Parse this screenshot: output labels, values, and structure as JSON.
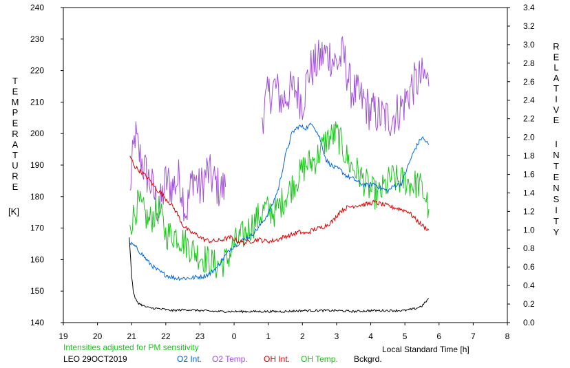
{
  "chart_data": {
    "type": "line",
    "left_axis": {
      "label_letters": [
        "T",
        "E",
        "M",
        "P",
        "E",
        "R",
        "A",
        "T",
        "U",
        "R",
        "E"
      ],
      "unit": "[K]",
      "range": [
        140,
        240
      ],
      "ticks": [
        "140",
        "150",
        "160",
        "170",
        "180",
        "190",
        "200",
        "210",
        "220",
        "230",
        "240"
      ]
    },
    "right_axis": {
      "label_letters_1": [
        "R",
        "E",
        "L",
        "A",
        "T",
        "I",
        "V",
        "E"
      ],
      "label_letters_2": [
        "I",
        "N",
        "T",
        "E",
        "N",
        "S",
        "I",
        "T",
        "Y"
      ],
      "range": [
        0.0,
        3.4
      ],
      "ticks": [
        "0.0",
        "0.2",
        "0.4",
        "0.6",
        "0.8",
        "1.0",
        "1.2",
        "1.4",
        "1.6",
        "1.8",
        "2.0",
        "2.2",
        "2.4",
        "2.6",
        "2.8",
        "3.0",
        "3.2",
        "3.4"
      ]
    },
    "x_axis": {
      "label": "Local Standard Time [h]",
      "range": [
        19,
        32
      ],
      "ticks": [
        "19",
        "20",
        "21",
        "22",
        "23",
        "0",
        "1",
        "2",
        "3",
        "4",
        "5",
        "6",
        "7",
        "8"
      ]
    },
    "notes": {
      "sensitivity": "Intensities adjusted for PM sensitivity",
      "station": "LEO 29OCT2019"
    },
    "legend": [
      {
        "label": "O2 Int.",
        "color": "#0064dc"
      },
      {
        "label": "O2 Temp.",
        "color": "#a050dc"
      },
      {
        "label": "OH Int.",
        "color": "#dc0000"
      },
      {
        "label": "OH Temp.",
        "color": "#14c814"
      },
      {
        "label": "Bckgrd.",
        "color": "#000000"
      }
    ],
    "series": [
      {
        "key": "o2temp",
        "axis": "left",
        "color": "#a050dc",
        "noise": 7,
        "x": [
          20.95,
          21.1,
          21.2,
          21.4,
          21.6,
          21.8,
          22.0,
          22.2,
          22.4,
          22.6,
          22.8,
          23.0,
          23.2,
          23.4,
          23.6,
          23.75
        ],
        "y": [
          182,
          200,
          194,
          188,
          183,
          175,
          185,
          183,
          186,
          175,
          187,
          182,
          188,
          185,
          182,
          183
        ]
      },
      {
        "key": "o2temp",
        "axis": "left",
        "color": "#a050dc",
        "noise": 7,
        "x": [
          24.8,
          25.0,
          25.2,
          25.4,
          25.6,
          25.8,
          26.0,
          26.2,
          26.4,
          26.6,
          26.8,
          27.0,
          27.2,
          27.4,
          27.6,
          27.8,
          28.0,
          28.2,
          28.4,
          28.6,
          28.8,
          29.0,
          29.2,
          29.4,
          29.6,
          29.7
        ],
        "y": [
          205,
          212,
          215,
          210,
          213,
          214,
          210,
          220,
          222,
          225,
          225,
          222,
          225,
          215,
          212,
          210,
          207,
          206,
          205,
          205,
          207,
          210,
          215,
          217,
          218,
          215
        ]
      },
      {
        "key": "oh_temp",
        "axis": "left",
        "color": "#14c814",
        "noise": 5,
        "x": [
          20.95,
          21.2,
          21.5,
          21.8,
          22.0,
          22.3,
          22.6,
          22.9,
          23.2,
          23.5,
          23.8,
          24.0,
          24.3,
          24.6,
          24.9,
          25.2,
          25.5,
          25.8,
          26.1,
          26.4,
          26.7,
          27.0,
          27.2,
          27.4,
          27.6,
          27.8,
          28.0,
          28.2,
          28.4,
          28.6,
          28.8,
          29.0,
          29.2,
          29.4,
          29.6,
          29.7
        ],
        "y": [
          171,
          178,
          172,
          176,
          168,
          168,
          165,
          162,
          160,
          158,
          160,
          165,
          168,
          172,
          176,
          175,
          180,
          185,
          190,
          192,
          198,
          200,
          195,
          190,
          188,
          185,
          182,
          180,
          183,
          186,
          185,
          185,
          184,
          184,
          180,
          176
        ]
      },
      {
        "key": "o2_int",
        "axis": "right",
        "color": "#0064dc",
        "noise": 0.025,
        "x": [
          20.95,
          21.1,
          21.3,
          21.5,
          21.7,
          21.9,
          22.1,
          22.3,
          22.5,
          22.7,
          22.9,
          23.1,
          23.3,
          23.5,
          23.7,
          23.9,
          24.1,
          24.3,
          24.5,
          24.7,
          24.9,
          25.1,
          25.3,
          25.5,
          25.7,
          25.9,
          26.1,
          26.3,
          26.5,
          26.7,
          26.9,
          27.1,
          27.3,
          27.5,
          27.7,
          27.9,
          28.1,
          28.3,
          28.5,
          28.7,
          28.9,
          29.1,
          29.3,
          29.5,
          29.7
        ],
        "y": [
          0.86,
          0.82,
          0.74,
          0.65,
          0.58,
          0.53,
          0.5,
          0.48,
          0.48,
          0.48,
          0.49,
          0.5,
          0.53,
          0.6,
          0.7,
          0.8,
          0.85,
          0.9,
          0.94,
          1.02,
          1.12,
          1.25,
          1.45,
          1.8,
          2.05,
          2.12,
          2.1,
          2.15,
          2.0,
          1.75,
          1.68,
          1.65,
          1.58,
          1.55,
          1.5,
          1.48,
          1.5,
          1.45,
          1.42,
          1.48,
          1.5,
          1.7,
          1.88,
          2.0,
          1.92
        ]
      },
      {
        "key": "oh_int",
        "axis": "right",
        "color": "#dc0000",
        "noise": 0.025,
        "x": [
          20.95,
          21.1,
          21.3,
          21.5,
          21.7,
          21.9,
          22.1,
          22.3,
          22.5,
          22.7,
          22.9,
          23.1,
          23.3,
          23.5,
          23.7,
          23.9,
          24.1,
          24.3,
          24.5,
          24.7,
          24.9,
          25.1,
          25.3,
          25.5,
          25.7,
          25.9,
          26.1,
          26.3,
          26.5,
          26.7,
          26.9,
          27.1,
          27.3,
          27.5,
          27.7,
          27.9,
          28.1,
          28.3,
          28.5,
          28.7,
          28.9,
          29.1,
          29.3,
          29.5,
          29.7
        ],
        "y": [
          1.8,
          1.68,
          1.62,
          1.55,
          1.45,
          1.38,
          1.3,
          1.2,
          1.05,
          0.98,
          0.95,
          0.9,
          0.88,
          0.88,
          0.9,
          0.92,
          0.88,
          0.86,
          0.88,
          0.9,
          0.88,
          0.88,
          0.9,
          0.93,
          0.95,
          0.98,
          0.96,
          1.0,
          1.02,
          1.05,
          1.1,
          1.2,
          1.24,
          1.26,
          1.27,
          1.28,
          1.3,
          1.28,
          1.26,
          1.24,
          1.22,
          1.2,
          1.12,
          1.05,
          1.0
        ]
      },
      {
        "key": "bckgrd",
        "axis": "right",
        "color": "#000000",
        "noise": 0.012,
        "x": [
          20.93,
          20.97,
          21.0,
          21.05,
          21.1,
          21.2,
          21.35,
          21.5,
          21.8,
          22.2,
          22.6,
          23.0,
          23.5,
          24.0,
          24.5,
          25.0,
          25.5,
          26.0,
          26.5,
          27.0,
          27.5,
          28.0,
          28.5,
          29.0,
          29.3,
          29.5,
          29.6,
          29.7
        ],
        "y": [
          0.92,
          0.7,
          0.5,
          0.33,
          0.26,
          0.21,
          0.18,
          0.16,
          0.15,
          0.13,
          0.14,
          0.13,
          0.12,
          0.12,
          0.12,
          0.12,
          0.12,
          0.13,
          0.13,
          0.13,
          0.12,
          0.13,
          0.13,
          0.13,
          0.15,
          0.18,
          0.22,
          0.26
        ]
      }
    ]
  }
}
